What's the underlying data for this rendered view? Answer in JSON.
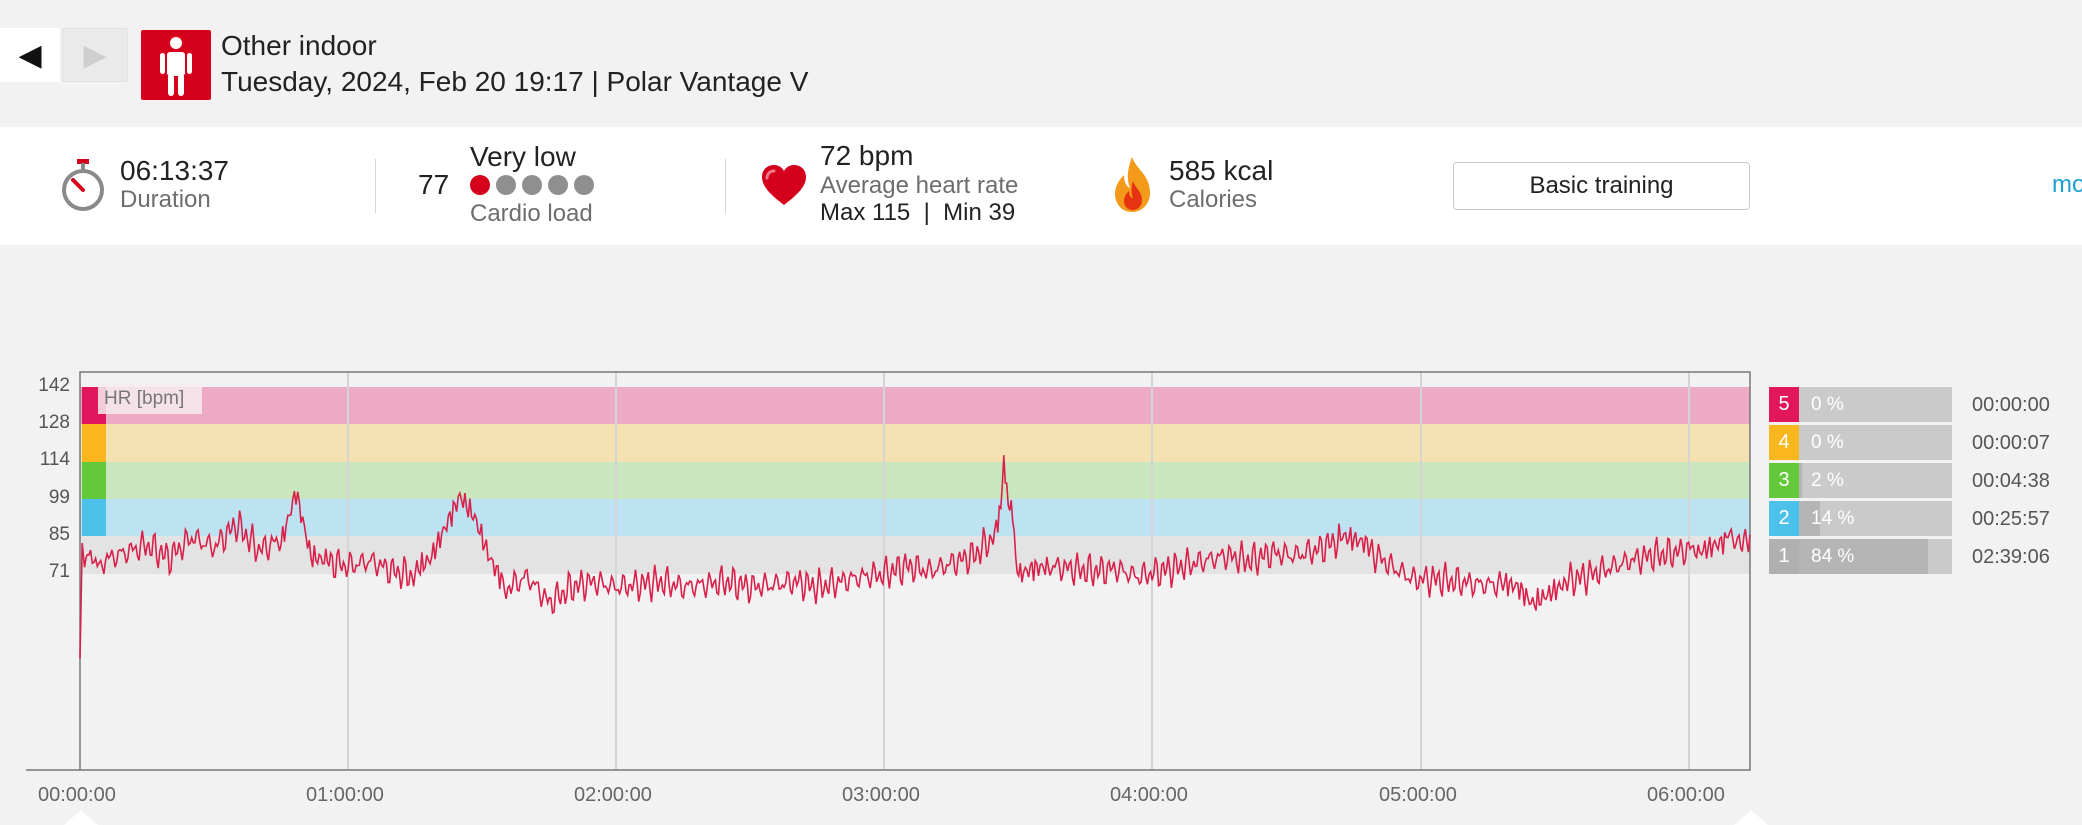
{
  "header": {
    "prev_symbol": "◀",
    "next_symbol": "▶",
    "sport_name": "Other indoor",
    "subtitle": "Tuesday, 2024, Feb 20 19:17 | Polar Vantage V"
  },
  "summary": {
    "duration_value": "06:13:37",
    "duration_label": "Duration",
    "cardio_value": "77",
    "cardio_level": "Very low",
    "cardio_label": "Cardio load",
    "cardio_dots_filled": 1,
    "cardio_dots_total": 5,
    "hr_value": "72 bpm",
    "hr_label": "Average heart rate",
    "hr_minmax": "Max 115  |  Min 39",
    "calories_value": "585 kcal",
    "calories_label": "Calories",
    "basic_training_label": "Basic training",
    "more_label": "mo"
  },
  "colors": {
    "accent": "#d5001c",
    "hr_line": "#d8204a",
    "zone5": "#e2165c",
    "zone4": "#f9b71d",
    "zone3": "#63c83a",
    "zone2": "#4cc1ea",
    "zone1": "#c6c6c6",
    "link": "#1ea0d3"
  },
  "chart_data": {
    "type": "line",
    "title": "HR [bpm]",
    "x_tick_labels": [
      "00:00:00",
      "01:00:00",
      "02:00:00",
      "03:00:00",
      "04:00:00",
      "05:00:00",
      "06:00:00"
    ],
    "y_ticks": [
      142,
      128,
      114,
      99,
      85,
      71
    ],
    "x_range_seconds": [
      0,
      22417
    ],
    "zones": [
      {
        "zone": "5",
        "percent": "0 %",
        "time": "00:00:00",
        "fraction": 0.0
      },
      {
        "zone": "4",
        "percent": "0 %",
        "time": "00:00:07",
        "fraction": 0.0
      },
      {
        "zone": "3",
        "percent": "2 %",
        "time": "00:04:38",
        "fraction": 0.02
      },
      {
        "zone": "2",
        "percent": "14 %",
        "time": "00:25:57",
        "fraction": 0.14
      },
      {
        "zone": "1",
        "percent": "84 %",
        "time": "02:39:06",
        "fraction": 0.84
      }
    ],
    "series": [
      {
        "x_seconds": [
          0,
          30,
          60,
          120,
          300,
          600,
          900,
          1200,
          1500,
          1800,
          2100,
          2400,
          2700,
          2900,
          3100,
          3300,
          3600,
          3900,
          4200,
          4500,
          4700,
          4900,
          5100,
          5300,
          5500,
          5700,
          6000,
          6300,
          6600,
          6900,
          7200,
          7500,
          7800,
          8100,
          8400,
          8700,
          9000,
          9300,
          9600,
          9900,
          10200,
          10500,
          10800,
          11100,
          11400,
          11700,
          12000,
          12300,
          12400,
          12500,
          12600,
          12800,
          13000,
          13300,
          13600,
          13900,
          14200,
          14500,
          14800,
          15100,
          15400,
          15700,
          16000,
          16300,
          16600,
          16900,
          17100,
          17300,
          17600,
          17900,
          18200,
          18500,
          18800,
          19100,
          19300,
          19500,
          19700,
          19900,
          20200,
          20500,
          20800,
          21100,
          21400,
          21700,
          21900,
          22100,
          22250,
          22417
        ],
        "hr": [
          39,
          85,
          78,
          80,
          76,
          79,
          82,
          77,
          85,
          81,
          90,
          80,
          84,
          103,
          78,
          76,
          74,
          76,
          72,
          70,
          74,
          86,
          98,
          90,
          75,
          65,
          70,
          60,
          66,
          68,
          66,
          67,
          68,
          66,
          67,
          68,
          66,
          67,
          68,
          66,
          68,
          70,
          71,
          74,
          72,
          75,
          78,
          86,
          110,
          95,
          70,
          73,
          74,
          73,
          72,
          73,
          70,
          72,
          74,
          76,
          78,
          76,
          79,
          78,
          80,
          84,
          82,
          80,
          74,
          69,
          69,
          68,
          67,
          67,
          66,
          60,
          64,
          68,
          70,
          73,
          76,
          78,
          79,
          81,
          83,
          85,
          84,
          86
        ]
      }
    ]
  }
}
